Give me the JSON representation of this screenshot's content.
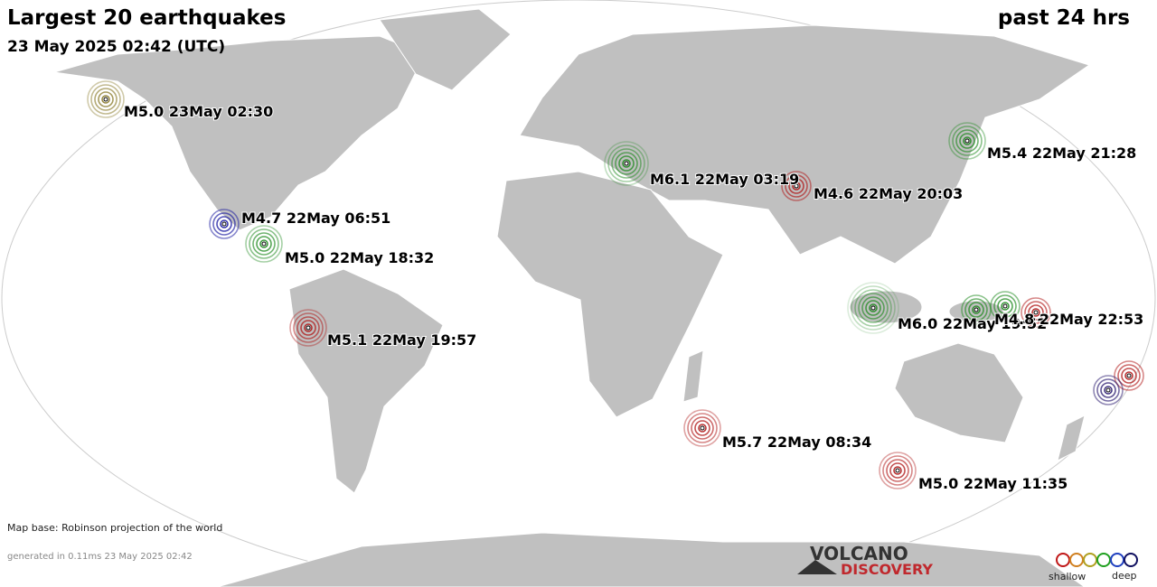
{
  "header": {
    "title": "Largest 20 earthquakes",
    "period": "past 24 hrs",
    "timestamp": "23 May 2025 02:42 (UTC)"
  },
  "earthquakes": [
    {
      "label": "M5.0 23May 02:30",
      "color": "#8a7a2a"
    },
    {
      "label": "M6.1 22May 03:19",
      "color": "#1f8a1f"
    },
    {
      "label": "M4.6 22May 20:03",
      "color": "#b01818"
    },
    {
      "label": "M5.4 22May 21:28",
      "color": "#1f8a1f"
    },
    {
      "label": "M4.7 22May 06:51",
      "color": "#1818a0"
    },
    {
      "label": "M5.0 22May 18:32",
      "color": "#1f8a1f"
    },
    {
      "label": "M5.1 22May 19:57",
      "color": "#b01818"
    },
    {
      "label": "M6.0 22May 19:52",
      "color": "#1f8a1f"
    },
    {
      "label": "M4.8 22May 22:53",
      "color": "#b01818"
    },
    {
      "label": "M5.7 22May 08:34",
      "color": "#b01818"
    },
    {
      "label": "M5.0 22May 11:35",
      "color": "#b01818"
    }
  ],
  "footer": {
    "map_base": "Map base: Robinson projection of the world",
    "generated": "generated in 0.11ms 23 May 2025 02:42"
  },
  "logo": {
    "line1": "VOLCANO",
    "line2": "DISCOVERY"
  },
  "depth_legend": {
    "shallow": "shallow",
    "deep": "deep"
  }
}
